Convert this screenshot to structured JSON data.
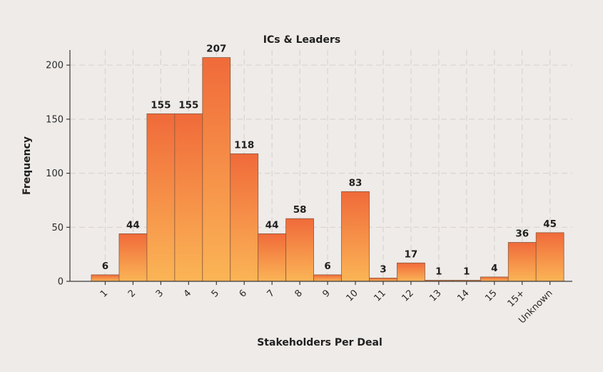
{
  "chart_data": {
    "type": "bar",
    "title": "ICs & Leaders",
    "xlabel": "Stakeholders Per Deal",
    "ylabel": "Frequency",
    "categories": [
      "1",
      "2",
      "3",
      "4",
      "5",
      "6",
      "7",
      "8",
      "9",
      "10",
      "11",
      "12",
      "13",
      "14",
      "15",
      "15+",
      "Unknown"
    ],
    "values": [
      6,
      44,
      155,
      155,
      207,
      118,
      44,
      58,
      6,
      83,
      3,
      17,
      1,
      1,
      4,
      36,
      45
    ],
    "ylim": [
      0,
      214
    ],
    "yticks": [
      0,
      50,
      100,
      150,
      200
    ],
    "grid": true,
    "colors": {
      "bar_top": "#f06a3a",
      "bar_bottom": "#fbb556"
    }
  }
}
